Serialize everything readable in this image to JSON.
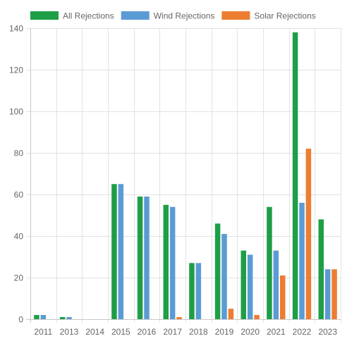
{
  "chart_data": {
    "type": "bar",
    "categories": [
      "2011",
      "2013",
      "2014",
      "2015",
      "2016",
      "2017",
      "2018",
      "2019",
      "2020",
      "2021",
      "2022",
      "2023"
    ],
    "series": [
      {
        "name": "All Rejections",
        "color": "#1e9e47",
        "values": [
          2,
          1,
          0,
          65,
          59,
          55,
          27,
          46,
          33,
          54,
          138,
          48
        ]
      },
      {
        "name": "Wind Rejections",
        "color": "#5b9bd5",
        "values": [
          2,
          1,
          0,
          65,
          59,
          54,
          27,
          41,
          31,
          33,
          56,
          24
        ]
      },
      {
        "name": "Solar Rejections",
        "color": "#ed7d31",
        "values": [
          0,
          0,
          0,
          0,
          0,
          1,
          0,
          5,
          2,
          21,
          82,
          24
        ]
      }
    ],
    "yticks": [
      "0",
      "20",
      "40",
      "60",
      "80",
      "100",
      "120",
      "140"
    ],
    "ylim": [
      0,
      140
    ],
    "grid": true,
    "legend_position": "top-left"
  }
}
